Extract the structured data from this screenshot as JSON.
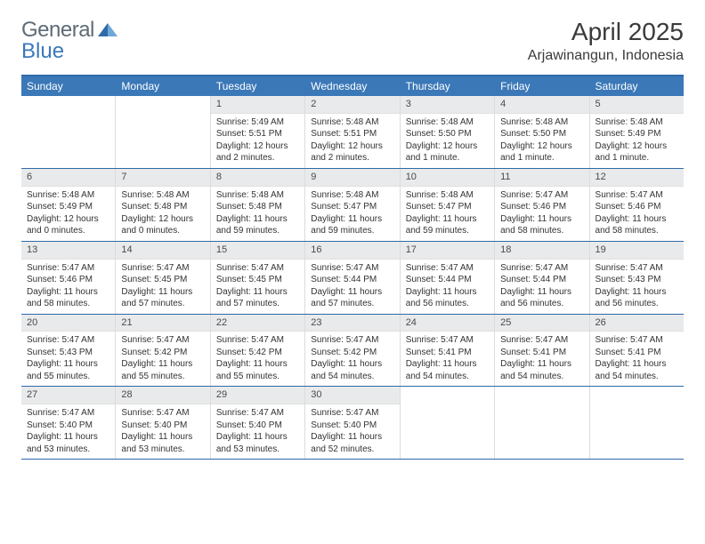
{
  "logo": {
    "text1": "General",
    "text2": "Blue"
  },
  "title": "April 2025",
  "location": "Arjawinangun, Indonesia",
  "colors": {
    "header_bg": "#3b78b8",
    "border": "#2f6aa8",
    "daynum_bg": "#e9eaeb",
    "text": "#333333"
  },
  "weekdays": [
    "Sunday",
    "Monday",
    "Tuesday",
    "Wednesday",
    "Thursday",
    "Friday",
    "Saturday"
  ],
  "weeks": [
    [
      null,
      null,
      {
        "n": "1",
        "sr": "Sunrise: 5:49 AM",
        "ss": "Sunset: 5:51 PM",
        "dl": "Daylight: 12 hours and 2 minutes."
      },
      {
        "n": "2",
        "sr": "Sunrise: 5:48 AM",
        "ss": "Sunset: 5:51 PM",
        "dl": "Daylight: 12 hours and 2 minutes."
      },
      {
        "n": "3",
        "sr": "Sunrise: 5:48 AM",
        "ss": "Sunset: 5:50 PM",
        "dl": "Daylight: 12 hours and 1 minute."
      },
      {
        "n": "4",
        "sr": "Sunrise: 5:48 AM",
        "ss": "Sunset: 5:50 PM",
        "dl": "Daylight: 12 hours and 1 minute."
      },
      {
        "n": "5",
        "sr": "Sunrise: 5:48 AM",
        "ss": "Sunset: 5:49 PM",
        "dl": "Daylight: 12 hours and 1 minute."
      }
    ],
    [
      {
        "n": "6",
        "sr": "Sunrise: 5:48 AM",
        "ss": "Sunset: 5:49 PM",
        "dl": "Daylight: 12 hours and 0 minutes."
      },
      {
        "n": "7",
        "sr": "Sunrise: 5:48 AM",
        "ss": "Sunset: 5:48 PM",
        "dl": "Daylight: 12 hours and 0 minutes."
      },
      {
        "n": "8",
        "sr": "Sunrise: 5:48 AM",
        "ss": "Sunset: 5:48 PM",
        "dl": "Daylight: 11 hours and 59 minutes."
      },
      {
        "n": "9",
        "sr": "Sunrise: 5:48 AM",
        "ss": "Sunset: 5:47 PM",
        "dl": "Daylight: 11 hours and 59 minutes."
      },
      {
        "n": "10",
        "sr": "Sunrise: 5:48 AM",
        "ss": "Sunset: 5:47 PM",
        "dl": "Daylight: 11 hours and 59 minutes."
      },
      {
        "n": "11",
        "sr": "Sunrise: 5:47 AM",
        "ss": "Sunset: 5:46 PM",
        "dl": "Daylight: 11 hours and 58 minutes."
      },
      {
        "n": "12",
        "sr": "Sunrise: 5:47 AM",
        "ss": "Sunset: 5:46 PM",
        "dl": "Daylight: 11 hours and 58 minutes."
      }
    ],
    [
      {
        "n": "13",
        "sr": "Sunrise: 5:47 AM",
        "ss": "Sunset: 5:46 PM",
        "dl": "Daylight: 11 hours and 58 minutes."
      },
      {
        "n": "14",
        "sr": "Sunrise: 5:47 AM",
        "ss": "Sunset: 5:45 PM",
        "dl": "Daylight: 11 hours and 57 minutes."
      },
      {
        "n": "15",
        "sr": "Sunrise: 5:47 AM",
        "ss": "Sunset: 5:45 PM",
        "dl": "Daylight: 11 hours and 57 minutes."
      },
      {
        "n": "16",
        "sr": "Sunrise: 5:47 AM",
        "ss": "Sunset: 5:44 PM",
        "dl": "Daylight: 11 hours and 57 minutes."
      },
      {
        "n": "17",
        "sr": "Sunrise: 5:47 AM",
        "ss": "Sunset: 5:44 PM",
        "dl": "Daylight: 11 hours and 56 minutes."
      },
      {
        "n": "18",
        "sr": "Sunrise: 5:47 AM",
        "ss": "Sunset: 5:44 PM",
        "dl": "Daylight: 11 hours and 56 minutes."
      },
      {
        "n": "19",
        "sr": "Sunrise: 5:47 AM",
        "ss": "Sunset: 5:43 PM",
        "dl": "Daylight: 11 hours and 56 minutes."
      }
    ],
    [
      {
        "n": "20",
        "sr": "Sunrise: 5:47 AM",
        "ss": "Sunset: 5:43 PM",
        "dl": "Daylight: 11 hours and 55 minutes."
      },
      {
        "n": "21",
        "sr": "Sunrise: 5:47 AM",
        "ss": "Sunset: 5:42 PM",
        "dl": "Daylight: 11 hours and 55 minutes."
      },
      {
        "n": "22",
        "sr": "Sunrise: 5:47 AM",
        "ss": "Sunset: 5:42 PM",
        "dl": "Daylight: 11 hours and 55 minutes."
      },
      {
        "n": "23",
        "sr": "Sunrise: 5:47 AM",
        "ss": "Sunset: 5:42 PM",
        "dl": "Daylight: 11 hours and 54 minutes."
      },
      {
        "n": "24",
        "sr": "Sunrise: 5:47 AM",
        "ss": "Sunset: 5:41 PM",
        "dl": "Daylight: 11 hours and 54 minutes."
      },
      {
        "n": "25",
        "sr": "Sunrise: 5:47 AM",
        "ss": "Sunset: 5:41 PM",
        "dl": "Daylight: 11 hours and 54 minutes."
      },
      {
        "n": "26",
        "sr": "Sunrise: 5:47 AM",
        "ss": "Sunset: 5:41 PM",
        "dl": "Daylight: 11 hours and 54 minutes."
      }
    ],
    [
      {
        "n": "27",
        "sr": "Sunrise: 5:47 AM",
        "ss": "Sunset: 5:40 PM",
        "dl": "Daylight: 11 hours and 53 minutes."
      },
      {
        "n": "28",
        "sr": "Sunrise: 5:47 AM",
        "ss": "Sunset: 5:40 PM",
        "dl": "Daylight: 11 hours and 53 minutes."
      },
      {
        "n": "29",
        "sr": "Sunrise: 5:47 AM",
        "ss": "Sunset: 5:40 PM",
        "dl": "Daylight: 11 hours and 53 minutes."
      },
      {
        "n": "30",
        "sr": "Sunrise: 5:47 AM",
        "ss": "Sunset: 5:40 PM",
        "dl": "Daylight: 11 hours and 52 minutes."
      },
      null,
      null,
      null
    ]
  ]
}
